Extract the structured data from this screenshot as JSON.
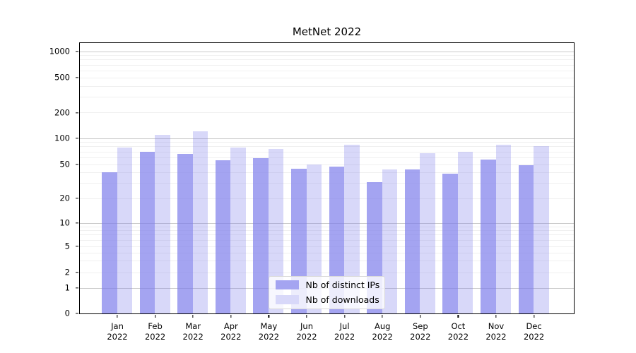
{
  "chart_data": {
    "type": "bar",
    "title": "MetNet 2022",
    "yscale": "symlog",
    "grid": true,
    "legend_position": "lower center",
    "ylim": [
      0,
      1000
    ],
    "y_ticks": [
      0,
      1,
      2,
      5,
      10,
      20,
      50,
      100,
      200,
      500,
      1000
    ],
    "categories": [
      "Jan 2022",
      "Feb 2022",
      "Mar 2022",
      "Apr 2022",
      "May 2022",
      "Jun 2022",
      "Jul 2022",
      "Aug 2022",
      "Sep 2022",
      "Oct 2022",
      "Nov 2022",
      "Dec 2022"
    ],
    "series": [
      {
        "name": "Nb of distinct IPs",
        "base_color": "#7d7deb",
        "alpha": 0.7,
        "values": [
          40,
          70,
          66,
          55,
          59,
          44,
          47,
          31,
          43,
          39,
          57,
          49
        ]
      },
      {
        "name": "Nb of downloads",
        "base_color": "#7d7deb",
        "alpha": 0.3,
        "values": [
          78,
          108,
          120,
          78,
          75,
          50,
          83,
          43,
          67,
          70,
          84,
          80
        ]
      }
    ]
  }
}
